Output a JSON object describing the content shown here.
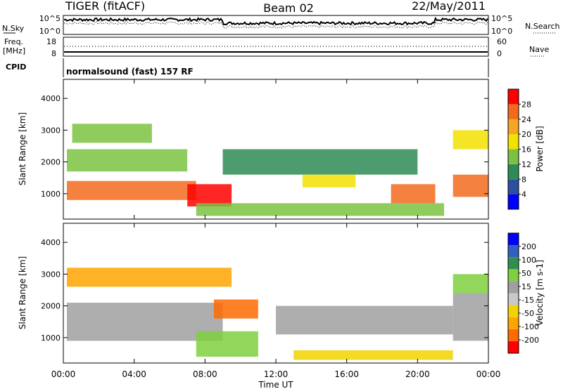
{
  "header": {
    "radar": "TIGER (fitACF)",
    "beam": "Beam 02",
    "date": "22/May/2011"
  },
  "noise_panel": {
    "left_label": "N.Sky",
    "left_ticks": [
      "10^5",
      "10^0"
    ],
    "right_label": "N.Search",
    "right_ticks": [
      "10^5",
      "10^0"
    ]
  },
  "freq_panel": {
    "left_label_1": "Freq.",
    "left_label_2": "[MHz]",
    "left_ticks": [
      "18",
      "8"
    ],
    "right_label": "Nave",
    "right_ticks": [
      "60",
      "0"
    ]
  },
  "cpid": {
    "label": "CPID",
    "value": "normalsound (fast) 157 RF"
  },
  "x_axis": {
    "label": "Time UT",
    "ticks": [
      "00:00",
      "04:00",
      "08:00",
      "12:00",
      "16:00",
      "20:00",
      "00:00"
    ]
  },
  "colors": {
    "power": [
      "#0000ff",
      "#2d4fa0",
      "#2e8b57",
      "#7cc242",
      "#f2e200",
      "#f5a623",
      "#f26b1d",
      "#ff0000"
    ],
    "velocity": [
      "#ff0000",
      "#ff6a00",
      "#ffa500",
      "#f2d200",
      "#c8c8c8",
      "#a0a0a0",
      "#7fcf3f",
      "#2f8f4f",
      "#3060c0",
      "#0000ff"
    ]
  },
  "chart_data": [
    {
      "type": "heatmap",
      "title": "",
      "xlabel": "Time UT",
      "ylabel": "Slant Range [km]",
      "xlim": [
        "00:00",
        "24:00"
      ],
      "ylim": [
        200,
        4600
      ],
      "yticks": [
        "1000",
        "2000",
        "3000",
        "4000"
      ],
      "colorbar": {
        "label": "Power [dB]",
        "ticks": [
          "4",
          "8",
          "12",
          "16",
          "20",
          "24",
          "28"
        ],
        "range": [
          0,
          32
        ]
      },
      "features": [
        {
          "t_start": 0.2,
          "t_end": 7.5,
          "range_start": 800,
          "range_end": 1400,
          "value": 24
        },
        {
          "t_start": 0.2,
          "t_end": 7.0,
          "range_start": 1700,
          "range_end": 2400,
          "value": 14
        },
        {
          "t_start": 0.5,
          "t_end": 5.0,
          "range_start": 2600,
          "range_end": 3200,
          "value": 12
        },
        {
          "t_start": 7.0,
          "t_end": 9.5,
          "range_start": 600,
          "range_end": 1300,
          "value": 28
        },
        {
          "t_start": 9.0,
          "t_end": 20.0,
          "range_start": 1600,
          "range_end": 2400,
          "value": 8
        },
        {
          "t_start": 13.5,
          "t_end": 16.5,
          "range_start": 1200,
          "range_end": 1600,
          "value": 16
        },
        {
          "t_start": 18.5,
          "t_end": 21.0,
          "range_start": 700,
          "range_end": 1300,
          "value": 26
        },
        {
          "t_start": 7.5,
          "t_end": 21.5,
          "range_start": 300,
          "range_end": 700,
          "value": 12
        },
        {
          "t_start": 22.0,
          "t_end": 24.0,
          "range_start": 900,
          "range_end": 1600,
          "value": 26
        },
        {
          "t_start": 22.0,
          "t_end": 24.0,
          "range_start": 2400,
          "range_end": 3000,
          "value": 18
        }
      ]
    },
    {
      "type": "heatmap",
      "title": "",
      "xlabel": "Time UT",
      "ylabel": "Slant Range [km]",
      "xlim": [
        "00:00",
        "24:00"
      ],
      "ylim": [
        200,
        4600
      ],
      "yticks": [
        "1000",
        "2000",
        "3000",
        "4000"
      ],
      "colorbar": {
        "label": "Velocity [m s-1]",
        "ticks": [
          "-200",
          "-100",
          "-50",
          "-15",
          "15",
          "50",
          "100",
          "200"
        ],
        "range": [
          -250,
          250
        ]
      },
      "features": [
        {
          "t_start": 0.2,
          "t_end": 9.5,
          "range_start": 2600,
          "range_end": 3200,
          "value": -150
        },
        {
          "t_start": 0.2,
          "t_end": 9.0,
          "range_start": 900,
          "range_end": 2100,
          "value": 0
        },
        {
          "t_start": 8.5,
          "t_end": 11.0,
          "range_start": 1600,
          "range_end": 2200,
          "value": -180
        },
        {
          "t_start": 7.5,
          "t_end": 11.0,
          "range_start": 400,
          "range_end": 1200,
          "value": 60
        },
        {
          "t_start": 12.0,
          "t_end": 22.0,
          "range_start": 1100,
          "range_end": 2000,
          "value": 0
        },
        {
          "t_start": 13.0,
          "t_end": 22.0,
          "range_start": 300,
          "range_end": 600,
          "value": -60
        },
        {
          "t_start": 22.0,
          "t_end": 24.0,
          "range_start": 900,
          "range_end": 2400,
          "value": 5
        },
        {
          "t_start": 22.0,
          "t_end": 24.0,
          "range_start": 2400,
          "range_end": 3000,
          "value": 70
        }
      ]
    }
  ]
}
